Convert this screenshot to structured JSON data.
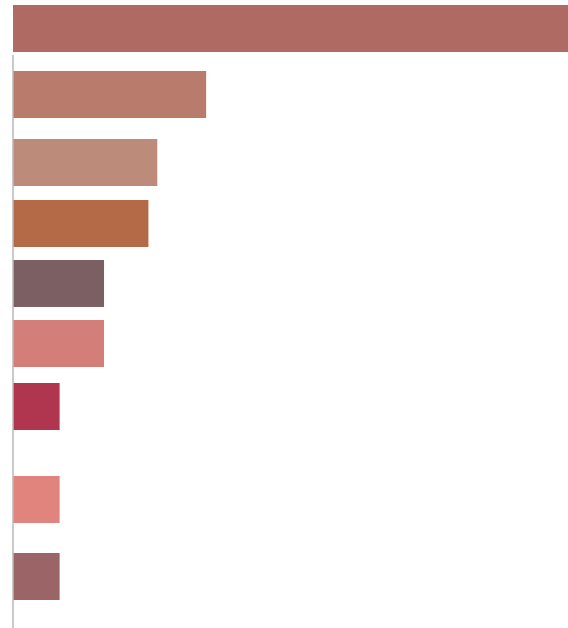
{
  "chart_data": {
    "type": "bar",
    "orientation": "horizontal",
    "categories": [
      "",
      "",
      "",
      "",
      "",
      "",
      "",
      "",
      ""
    ],
    "values": [
      12.5,
      4.35,
      3.25,
      3.05,
      2.05,
      2.05,
      1.05,
      1.05,
      1.05
    ],
    "colors": [
      "#b06a64",
      "#b97b6b",
      "#bd8b79",
      "#b46a46",
      "#7c5f63",
      "#d37e78",
      "#b03650",
      "#e0847d",
      "#9b6466"
    ],
    "title": "",
    "xlabel": "",
    "ylabel": "",
    "xlim": [
      0,
      12.5
    ],
    "grid": false,
    "legend": "none"
  }
}
